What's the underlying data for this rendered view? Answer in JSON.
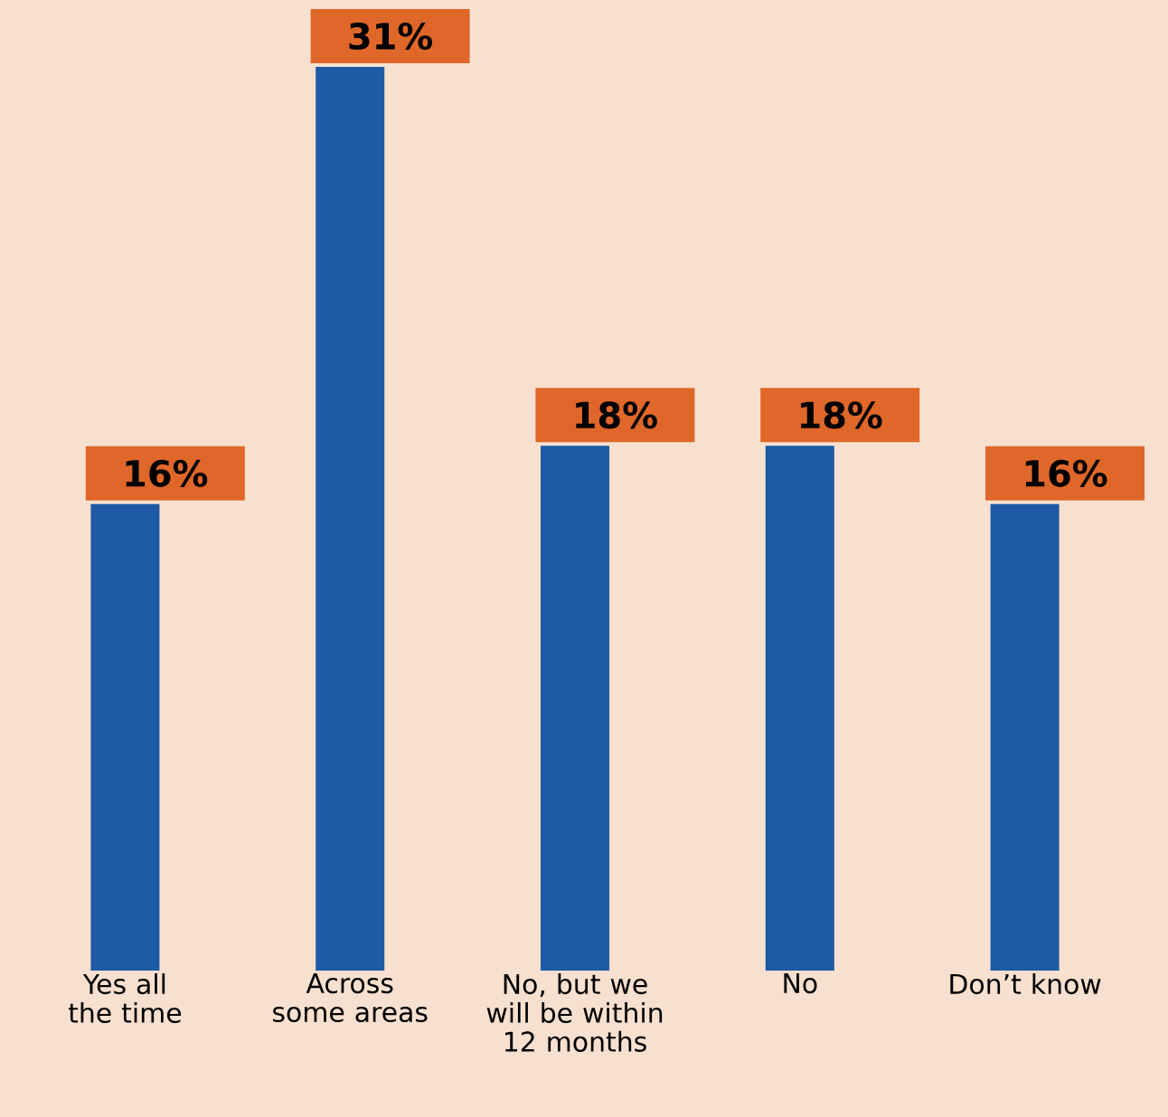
{
  "chart_data": {
    "type": "bar",
    "categories": [
      "Yes all the time",
      "Across some areas",
      "No, but we will be within 12 months",
      "No",
      "Don’t know"
    ],
    "values": [
      16,
      31,
      18,
      18,
      16
    ],
    "color": "#1e5aa5",
    "value_labels": [
      "16%",
      "31%",
      "18%",
      "18%",
      "16%"
    ]
  }
}
